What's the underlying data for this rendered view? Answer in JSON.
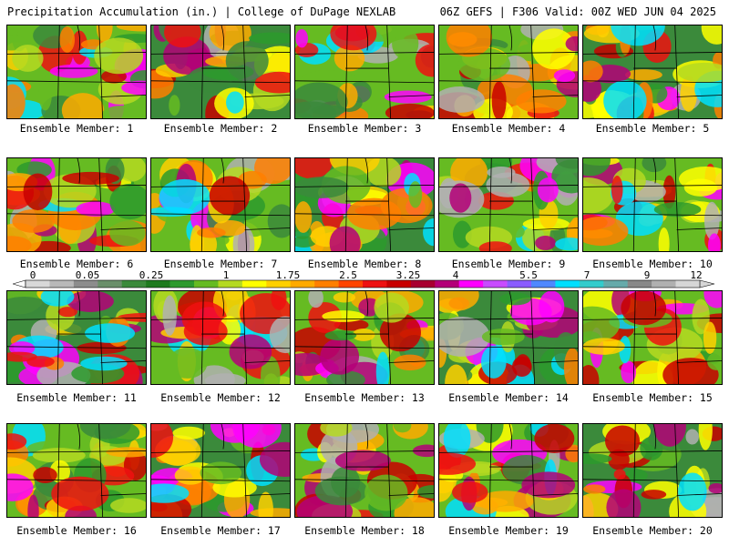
{
  "header": {
    "left": "Precipitation Accumulation (in.) | College of DuPage NEXLAB",
    "right": "06Z GEFS | F306 Valid: 00Z WED JUN 04 2025"
  },
  "legend": {
    "tick_labels": [
      "0",
      "0.05",
      "0.25",
      "1",
      "1.75",
      "2.5",
      "3.25",
      "4",
      "5.5",
      "7",
      "9",
      "12"
    ],
    "colors": [
      "#d8d8d8",
      "#b8b8b8",
      "#8c8c8c",
      "#6a8f6a",
      "#3b8a3b",
      "#1e7a1e",
      "#2d9a2d",
      "#66bb22",
      "#b5d921",
      "#ffff00",
      "#ffd000",
      "#ffaa00",
      "#ff7f00",
      "#ff4400",
      "#ee1111",
      "#c80000",
      "#a80030",
      "#b40078",
      "#ff00ff",
      "#c84bff",
      "#8a5cff",
      "#4f88ff",
      "#00dfff",
      "#33cccc",
      "#66aaaa",
      "#888888",
      "#b0b0b0",
      "#d6d6d6"
    ]
  },
  "panels": [
    {
      "label": "Ensemble Member: 1"
    },
    {
      "label": "Ensemble Member: 2"
    },
    {
      "label": "Ensemble Member: 3"
    },
    {
      "label": "Ensemble Member: 4"
    },
    {
      "label": "Ensemble Member: 5"
    },
    {
      "label": "Ensemble Member: 6"
    },
    {
      "label": "Ensemble Member: 7"
    },
    {
      "label": "Ensemble Member: 8"
    },
    {
      "label": "Ensemble Member: 9"
    },
    {
      "label": "Ensemble Member: 10"
    },
    {
      "label": "Ensemble Member: 11"
    },
    {
      "label": "Ensemble Member: 12"
    },
    {
      "label": "Ensemble Member: 13"
    },
    {
      "label": "Ensemble Member: 14"
    },
    {
      "label": "Ensemble Member: 15"
    },
    {
      "label": "Ensemble Member: 16"
    },
    {
      "label": "Ensemble Member: 17"
    },
    {
      "label": "Ensemble Member: 18"
    },
    {
      "label": "Ensemble Member: 19"
    },
    {
      "label": "Ensemble Member: 20"
    }
  ]
}
